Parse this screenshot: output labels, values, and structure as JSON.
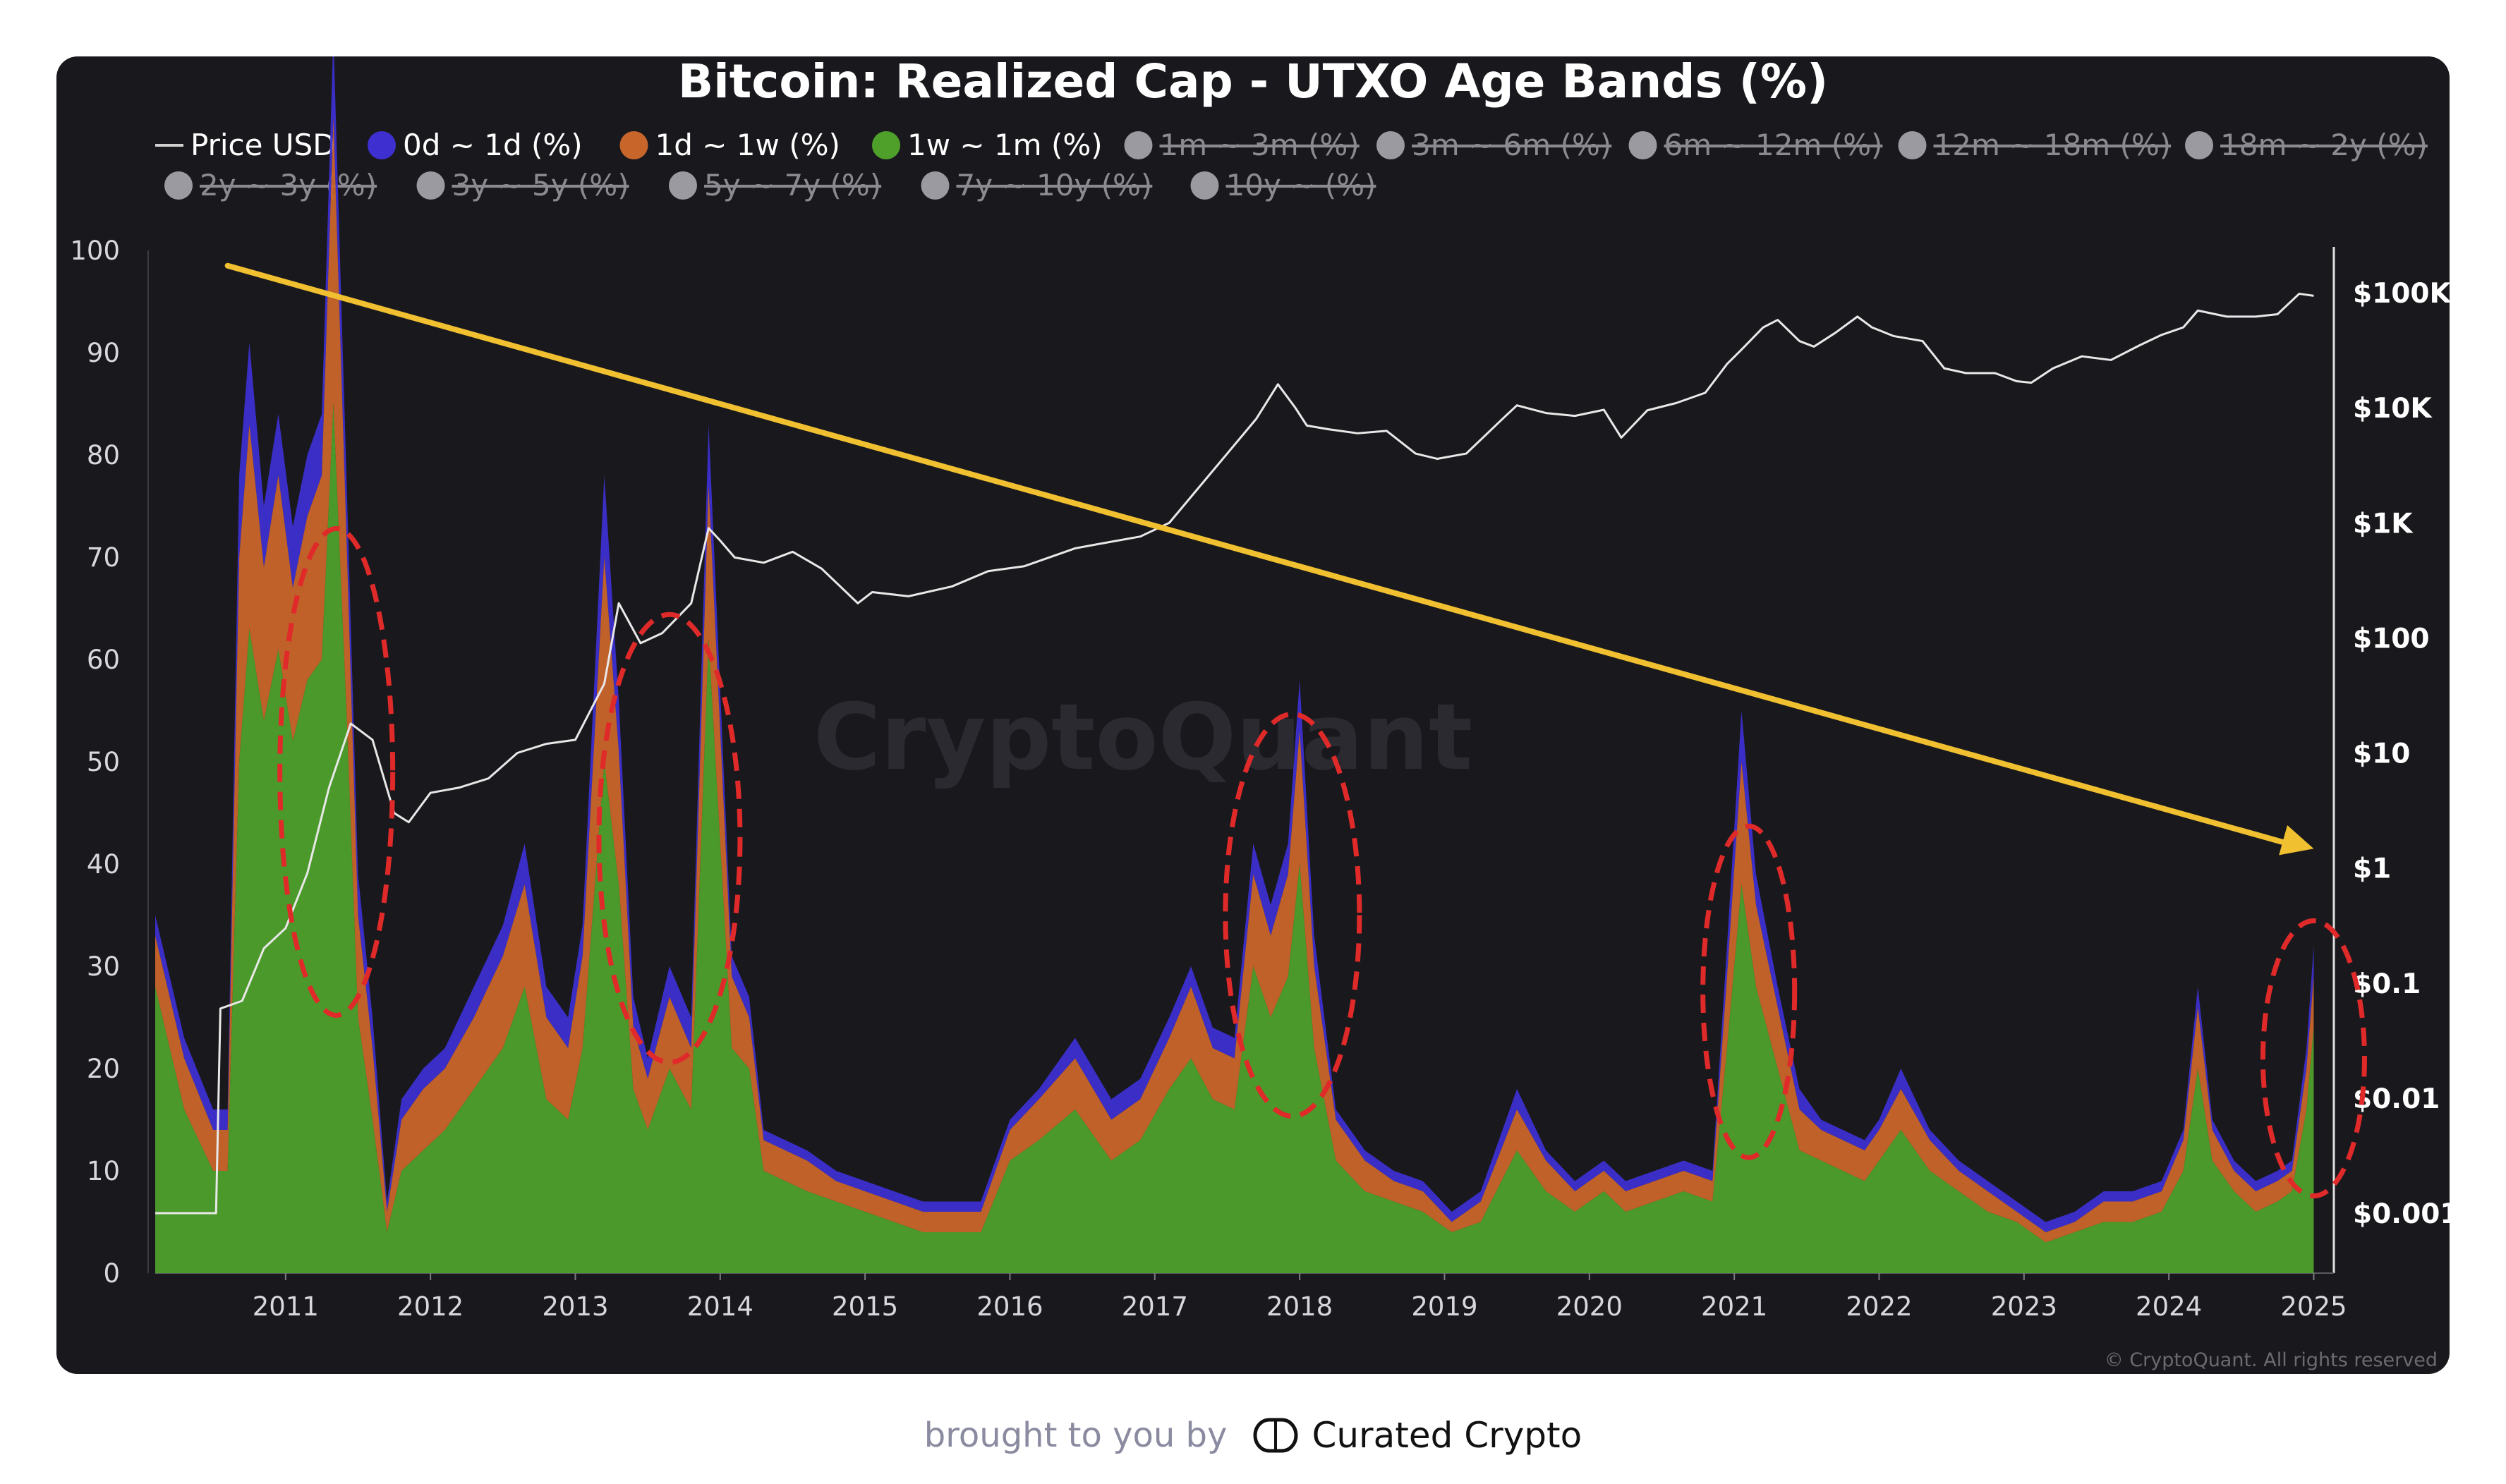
{
  "chart_data": {
    "type": "area",
    "title": "Bitcoin: Realized Cap - UTXO Age Bands (%)",
    "stacked": true,
    "legend": [
      {
        "name": "Price USD",
        "color": "#d0d0d0",
        "marker": "line",
        "active": true
      },
      {
        "name": "0d ~ 1d (%)",
        "color": "#3d2fd0",
        "marker": "dot",
        "active": true
      },
      {
        "name": "1d ~ 1w (%)",
        "color": "#c8652a",
        "marker": "dot",
        "active": true
      },
      {
        "name": "1w ~ 1m (%)",
        "color": "#4ea02b",
        "marker": "dot",
        "active": true
      },
      {
        "name": "1m ~ 3m (%)",
        "color": "#9a9aa0",
        "marker": "dot",
        "active": false
      },
      {
        "name": "3m ~ 6m (%)",
        "color": "#9a9aa0",
        "marker": "dot",
        "active": false
      },
      {
        "name": "6m ~ 12m (%)",
        "color": "#9a9aa0",
        "marker": "dot",
        "active": false
      },
      {
        "name": "12m ~ 18m (%)",
        "color": "#9a9aa0",
        "marker": "dot",
        "active": false
      },
      {
        "name": "18m ~ 2y (%)",
        "color": "#9a9aa0",
        "marker": "dot",
        "active": false
      },
      {
        "name": "2y ~ 3y (%)",
        "color": "#9a9aa0",
        "marker": "dot",
        "active": false
      },
      {
        "name": "3y ~ 5y (%)",
        "color": "#9a9aa0",
        "marker": "dot",
        "active": false
      },
      {
        "name": "5y ~ 7y (%)",
        "color": "#9a9aa0",
        "marker": "dot",
        "active": false
      },
      {
        "name": "7y ~ 10y (%)",
        "color": "#9a9aa0",
        "marker": "dot",
        "active": false
      },
      {
        "name": "10y ~ (%)",
        "color": "#9a9aa0",
        "marker": "dot",
        "active": false
      }
    ],
    "x_tick_labels": [
      "2011",
      "2012",
      "2013",
      "2014",
      "2015",
      "2016",
      "2017",
      "2018",
      "2019",
      "2020",
      "2021",
      "2022",
      "2023",
      "2024",
      "2025"
    ],
    "xlim": [
      2010.1,
      2025.1
    ],
    "y_left": {
      "ylim": [
        0,
        100
      ],
      "tick_labels": [
        "0",
        "10",
        "20",
        "30",
        "40",
        "50",
        "60",
        "70",
        "80",
        "90",
        "100"
      ]
    },
    "y_right": {
      "scale": "log",
      "tick_labels": [
        "$0.001",
        "$0.01",
        "$0.1",
        "$1",
        "$10",
        "$100",
        "$1K",
        "$10K",
        "$100K"
      ],
      "tick_values": [
        0.001,
        0.01,
        0.1,
        1,
        10,
        100,
        1000,
        10000,
        100000
      ]
    },
    "x": [
      2010.1,
      2010.3,
      2010.5,
      2010.6,
      2010.68,
      2010.75,
      2010.85,
      2010.95,
      2011.05,
      2011.15,
      2011.25,
      2011.33,
      2011.42,
      2011.5,
      2011.6,
      2011.7,
      2011.8,
      2011.95,
      2012.1,
      2012.3,
      2012.5,
      2012.65,
      2012.8,
      2012.95,
      2013.05,
      2013.2,
      2013.3,
      2013.4,
      2013.5,
      2013.65,
      2013.8,
      2013.92,
      2014.0,
      2014.08,
      2014.2,
      2014.3,
      2014.45,
      2014.6,
      2014.8,
      2015.0,
      2015.2,
      2015.4,
      2015.6,
      2015.8,
      2016.0,
      2016.2,
      2016.45,
      2016.7,
      2016.9,
      2017.1,
      2017.25,
      2017.4,
      2017.55,
      2017.68,
      2017.8,
      2017.92,
      2018.0,
      2018.1,
      2018.25,
      2018.45,
      2018.65,
      2018.85,
      2019.05,
      2019.25,
      2019.5,
      2019.7,
      2019.9,
      2020.1,
      2020.25,
      2020.45,
      2020.65,
      2020.85,
      2020.95,
      2021.05,
      2021.15,
      2021.3,
      2021.45,
      2021.6,
      2021.75,
      2021.9,
      2022.0,
      2022.15,
      2022.35,
      2022.55,
      2022.75,
      2022.95,
      2023.15,
      2023.35,
      2023.55,
      2023.75,
      2023.95,
      2024.1,
      2024.2,
      2024.3,
      2024.45,
      2024.6,
      2024.75,
      2024.85,
      2024.95,
      2025.0
    ],
    "series": [
      {
        "name": "1w ~ 1m (%)",
        "values": [
          28,
          16,
          10,
          10,
          50,
          63,
          54,
          61,
          52,
          58,
          60,
          85,
          55,
          25,
          15,
          4,
          10,
          12,
          14,
          18,
          22,
          28,
          17,
          15,
          22,
          50,
          38,
          18,
          14,
          20,
          16,
          62,
          42,
          22,
          20,
          10,
          9,
          8,
          7,
          6,
          5,
          4,
          4,
          4,
          11,
          13,
          16,
          11,
          13,
          18,
          21,
          17,
          16,
          30,
          25,
          29,
          40,
          22,
          11,
          8,
          7,
          6,
          4,
          5,
          12,
          8,
          6,
          8,
          6,
          7,
          8,
          7,
          22,
          38,
          28,
          20,
          12,
          11,
          10,
          9,
          11,
          14,
          10,
          8,
          6,
          5,
          3,
          4,
          5,
          5,
          6,
          10,
          20,
          11,
          8,
          6,
          7,
          8,
          16,
          24
        ]
      },
      {
        "name": "1d ~ 1w (%)",
        "values": [
          5,
          5,
          4,
          4,
          20,
          20,
          15,
          17,
          15,
          16,
          18,
          28,
          17,
          10,
          7,
          2,
          5,
          6,
          6,
          7,
          9,
          10,
          8,
          7,
          9,
          20,
          13,
          6,
          5,
          7,
          6,
          15,
          11,
          7,
          5,
          3,
          3,
          3,
          2,
          2,
          2,
          2,
          2,
          2,
          3,
          4,
          5,
          4,
          4,
          5,
          7,
          5,
          5,
          9,
          8,
          10,
          13,
          8,
          4,
          3,
          2,
          2,
          1,
          2,
          4,
          3,
          2,
          2,
          2,
          2,
          2,
          2,
          7,
          12,
          8,
          6,
          4,
          3,
          3,
          3,
          3,
          4,
          3,
          2,
          2,
          1,
          1,
          1,
          2,
          2,
          2,
          3,
          6,
          3,
          2,
          2,
          2,
          2,
          4,
          5
        ]
      },
      {
        "name": "0d ~ 1d (%)",
        "values": [
          2,
          2,
          2,
          2,
          8,
          8,
          6,
          6,
          6,
          6,
          6,
          8,
          6,
          4,
          3,
          1,
          2,
          2,
          2,
          3,
          3,
          4,
          3,
          3,
          3,
          8,
          5,
          3,
          2,
          3,
          3,
          6,
          4,
          2,
          2,
          1,
          1,
          1,
          1,
          1,
          1,
          1,
          1,
          1,
          1,
          1,
          2,
          2,
          2,
          2,
          2,
          2,
          2,
          3,
          3,
          3,
          5,
          3,
          1,
          1,
          1,
          1,
          1,
          1,
          2,
          1,
          1,
          1,
          1,
          1,
          1,
          1,
          3,
          5,
          3,
          2,
          2,
          1,
          1,
          1,
          1,
          2,
          1,
          1,
          1,
          1,
          1,
          1,
          1,
          1,
          1,
          1,
          2,
          1,
          1,
          1,
          1,
          1,
          2,
          3
        ]
      }
    ],
    "price_usd": {
      "x": [
        2010.1,
        2010.52,
        2010.55,
        2010.7,
        2010.85,
        2011.0,
        2011.15,
        2011.3,
        2011.45,
        2011.6,
        2011.75,
        2011.85,
        2012.0,
        2012.2,
        2012.4,
        2012.6,
        2012.8,
        2013.0,
        2013.2,
        2013.3,
        2013.45,
        2013.6,
        2013.8,
        2013.92,
        2014.0,
        2014.1,
        2014.3,
        2014.5,
        2014.7,
        2014.95,
        2015.05,
        2015.3,
        2015.6,
        2015.85,
        2016.1,
        2016.45,
        2016.6,
        2016.9,
        2017.1,
        2017.3,
        2017.5,
        2017.7,
        2017.85,
        2017.97,
        2018.05,
        2018.2,
        2018.4,
        2018.6,
        2018.8,
        2018.95,
        2019.15,
        2019.4,
        2019.5,
        2019.7,
        2019.9,
        2020.1,
        2020.22,
        2020.4,
        2020.6,
        2020.8,
        2020.95,
        2021.05,
        2021.2,
        2021.3,
        2021.45,
        2021.55,
        2021.7,
        2021.85,
        2021.95,
        2022.1,
        2022.3,
        2022.45,
        2022.6,
        2022.8,
        2022.95,
        2023.05,
        2023.2,
        2023.4,
        2023.6,
        2023.8,
        2023.95,
        2024.1,
        2024.2,
        2024.4,
        2024.6,
        2024.75,
        2024.9,
        2025.0
      ],
      "y": [
        0.001,
        0.001,
        0.06,
        0.07,
        0.2,
        0.3,
        0.9,
        5,
        18,
        13,
        3,
        2.5,
        4.5,
        5,
        6,
        10,
        12,
        13,
        40,
        200,
        90,
        110,
        200,
        900,
        700,
        500,
        450,
        560,
        400,
        200,
        250,
        230,
        280,
        380,
        420,
        600,
        650,
        760,
        1000,
        2000,
        4000,
        8000,
        16000,
        10000,
        7000,
        6500,
        6000,
        6300,
        4000,
        3600,
        4000,
        8000,
        10500,
        9000,
        8500,
        9600,
        5500,
        9500,
        11000,
        13500,
        24000,
        32000,
        50000,
        58000,
        38000,
        34000,
        45000,
        62000,
        50000,
        42000,
        38000,
        22000,
        20000,
        20000,
        17000,
        16500,
        22000,
        28000,
        26000,
        35000,
        43000,
        50000,
        70000,
        62000,
        62000,
        65000,
        98000,
        94000
      ]
    },
    "trendline": {
      "x": [
        2010.6,
        2025.0
      ],
      "y_pct": [
        98.5,
        41.5
      ],
      "color": "#f0c030"
    },
    "highlight_ellipses": [
      {
        "x_center": 2011.35,
        "y_center": 49,
        "color": "#e02a2a"
      },
      {
        "x_center": 2013.65,
        "y_center": 42.5,
        "color": "#e02a2a"
      },
      {
        "x_center": 2017.95,
        "y_center": 35,
        "color": "#e02a2a"
      },
      {
        "x_center": 2021.1,
        "y_center": 27.5,
        "color": "#e02a2a"
      },
      {
        "x_center": 2025.0,
        "y_center": 21,
        "color": "#e02a2a"
      }
    ],
    "grid": false,
    "watermark": "CryptoQuant",
    "copyright": "© CryptoQuant. All rights reserved"
  },
  "footer": {
    "prefix": "brought to you by",
    "brand": "Curated Crypto"
  }
}
